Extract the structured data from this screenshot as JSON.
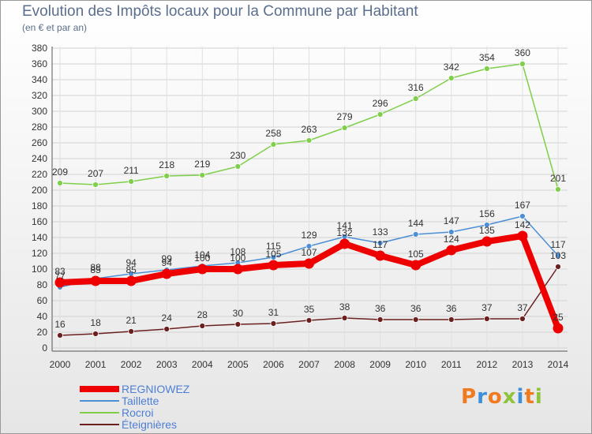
{
  "title": "Evolution des Impôts locaux pour la Commune par Habitant",
  "subtitle": "(en € et par an)",
  "logo": {
    "text": "Proxiti",
    "colors": [
      "#f07a1e",
      "#3d8fd9",
      "#f07a1e",
      "#8fc43a",
      "#3d8fd9",
      "#f07a1e",
      "#8fc43a"
    ]
  },
  "chart_data": {
    "type": "line",
    "x": [
      "2000",
      "2001",
      "2002",
      "2003",
      "2004",
      "2005",
      "2006",
      "2007",
      "2008",
      "2009",
      "2010",
      "2011",
      "2012",
      "2013",
      "2014"
    ],
    "ylim": [
      0,
      380
    ],
    "yticks": [
      0,
      20,
      40,
      60,
      80,
      100,
      120,
      140,
      160,
      180,
      200,
      220,
      240,
      260,
      280,
      300,
      320,
      340,
      360,
      380
    ],
    "grid": true,
    "legend_position": "bottom-left",
    "series": [
      {
        "name": "REGNIOWEZ",
        "color": "#ee0000",
        "thick": true,
        "values": [
          83,
          85,
          85,
          94,
          100,
          100,
          105,
          107,
          132,
          117,
          105,
          124,
          135,
          142,
          25
        ]
      },
      {
        "name": "Taillette",
        "color": "#4d8fd6",
        "thick": false,
        "values": [
          77,
          88,
          94,
          99,
          104,
          108,
          115,
          129,
          141,
          133,
          144,
          147,
          156,
          167,
          117
        ]
      },
      {
        "name": "Rocroi",
        "color": "#7fcf4a",
        "thick": false,
        "values": [
          209,
          207,
          211,
          218,
          219,
          230,
          258,
          263,
          279,
          296,
          316,
          342,
          354,
          360,
          201
        ]
      },
      {
        "name": "Éteignières",
        "color": "#6b1f1f",
        "thick": false,
        "values": [
          16,
          18,
          21,
          24,
          28,
          30,
          31,
          35,
          38,
          36,
          36,
          36,
          37,
          37,
          103
        ]
      }
    ]
  }
}
